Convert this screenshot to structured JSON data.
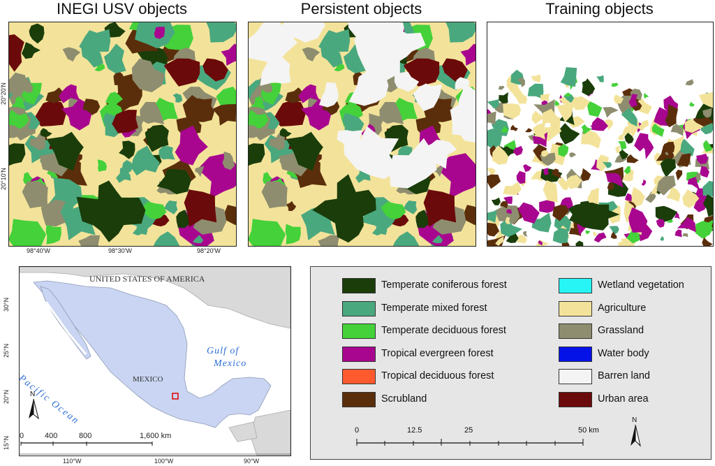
{
  "panels": [
    {
      "title": "INEGI USV objects"
    },
    {
      "title": "Persistent objects"
    },
    {
      "title": "Training objects"
    }
  ],
  "axes": {
    "lat_labels": [
      "20°20'N",
      "20°10'N"
    ],
    "lon_labels": [
      "98°40'W",
      "98°30'W",
      "98°20'W"
    ]
  },
  "inset": {
    "country_label": "UNITED STATES OF AMERICA",
    "mexico_label": "MEXICO",
    "gulf_label_line1": "Gulf of",
    "gulf_label_line2": "Mexico",
    "ocean_label": "Pacific Ocean",
    "north_label": "N",
    "scale_labels": [
      "0",
      "400",
      "800",
      "1,600 km"
    ],
    "lat_labels": [
      "30°N",
      "25°N",
      "20°N",
      "15°N"
    ],
    "lon_labels": [
      "110°W",
      "100°W",
      "90°W"
    ],
    "colors": {
      "land": "#c9d5f2",
      "neighbor": "#d9d9d9",
      "water": "#ffffff",
      "study_area": "#e00000"
    }
  },
  "legend": {
    "items": [
      {
        "label": "Temperate coniferous forest",
        "color": "#1a3d0a"
      },
      {
        "label": "Temperate mixed forest",
        "color": "#4aa87e"
      },
      {
        "label": "Temperate deciduous forest",
        "color": "#44d13a"
      },
      {
        "label": "Tropical evergreen forest",
        "color": "#a8068f"
      },
      {
        "label": "Tropical deciduous forest",
        "color": "#ff5a2e"
      },
      {
        "label": "Scrubland",
        "color": "#5b2e0b"
      },
      {
        "label": "Wetland vegetation",
        "color": "#27f5f5"
      },
      {
        "label": "Agriculture",
        "color": "#f3e39a"
      },
      {
        "label": "Grassland",
        "color": "#8e8d6f"
      },
      {
        "label": "Water body",
        "color": "#0412e8"
      },
      {
        "label": "Barren land",
        "color": "#f4f4f4"
      },
      {
        "label": "Urban area",
        "color": "#6b0a0a"
      }
    ],
    "scale_labels": [
      "0",
      "12.5",
      "25",
      "50 km"
    ],
    "north_label": "N"
  }
}
